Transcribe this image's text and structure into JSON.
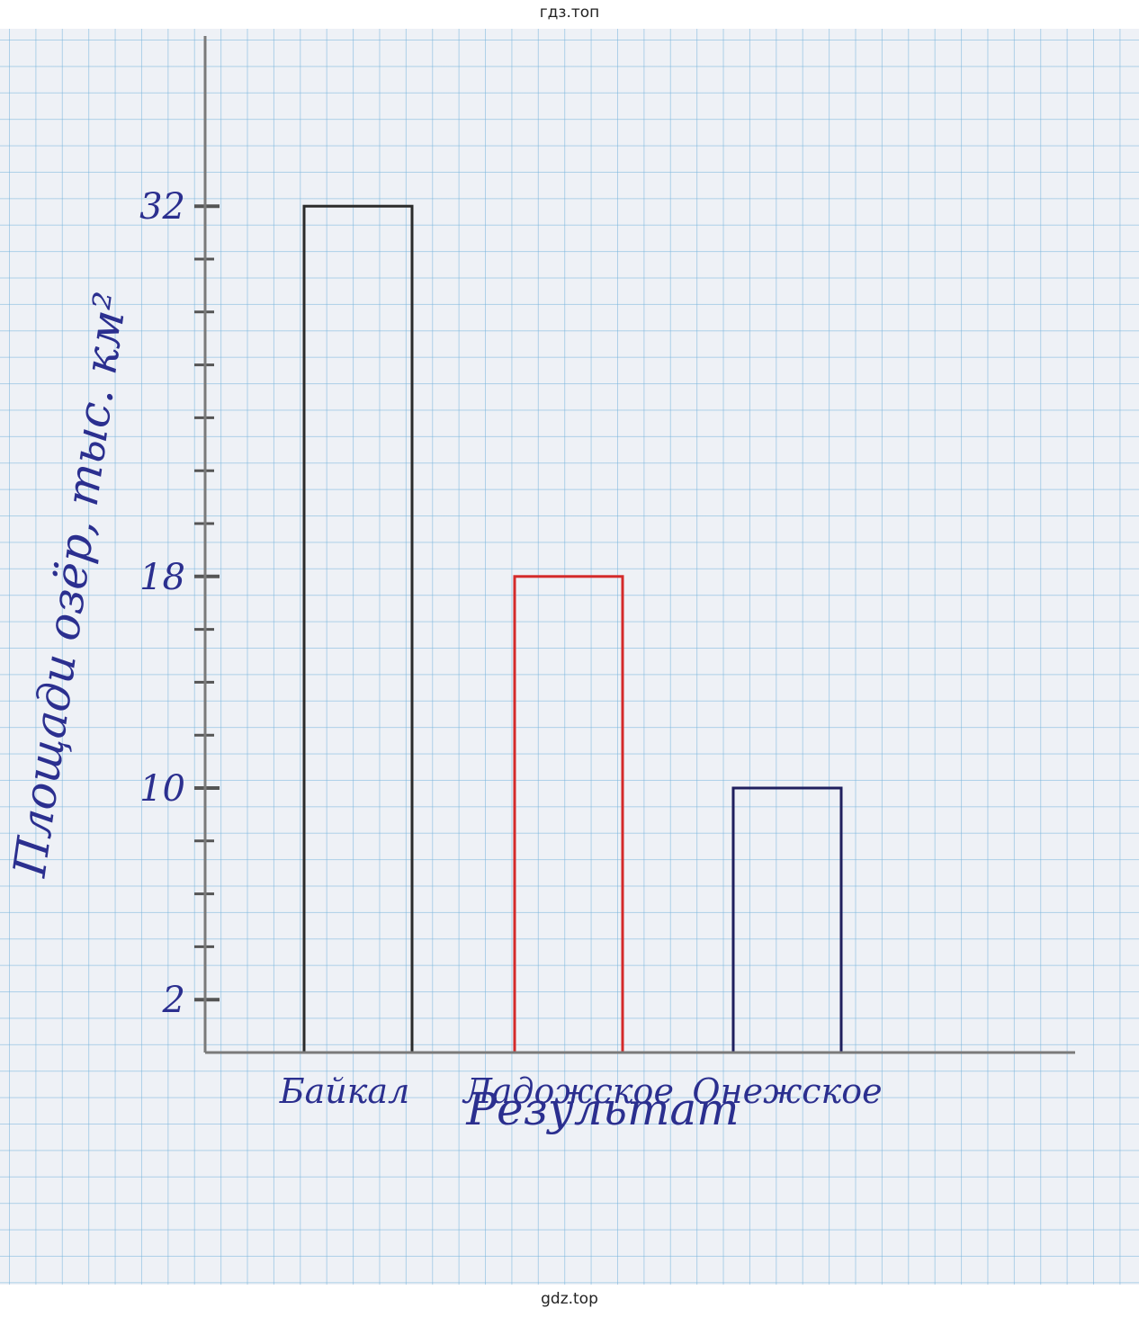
{
  "watermark_top": "гдз.топ",
  "watermark_bottom": "gdz.top",
  "chart_data": {
    "type": "bar",
    "title": "",
    "categories": [
      "Байкал",
      "Ладожское",
      "Онежское"
    ],
    "values": [
      32,
      18,
      10
    ],
    "bar_colors": [
      "#2a2a2a",
      "#d42a2a",
      "#1f1f5e"
    ],
    "xlabel": "Результат",
    "ylabel": "Площади озёр, тыс. км²",
    "ylim": [
      0,
      32
    ],
    "ytick_labels": [
      "2",
      "10",
      "18",
      "32"
    ],
    "ytick_values": [
      2,
      10,
      18,
      32
    ],
    "minor_tick_step": 2,
    "grid": true,
    "label_color": "#2b2f8f",
    "axis_color": "#7a7a7a"
  }
}
